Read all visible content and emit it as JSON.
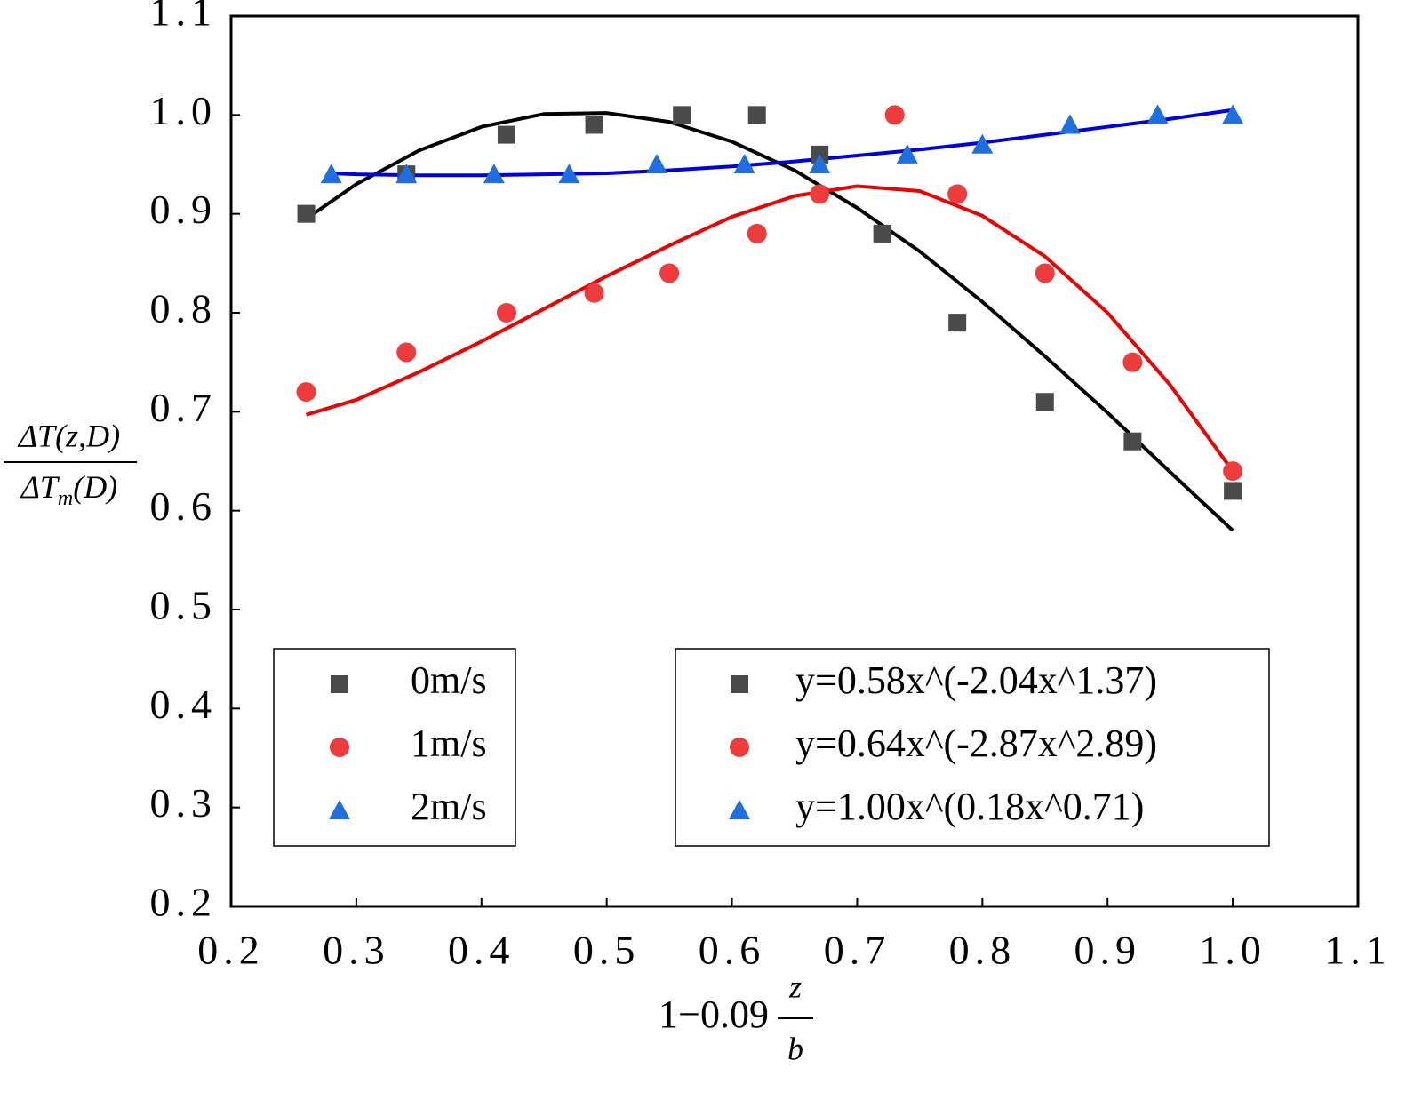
{
  "chart_data": {
    "type": "scatter",
    "xlabel": {
      "lead": "1−0.09",
      "numerator": "z",
      "denominator": "b"
    },
    "ylabel": {
      "numerator": "ΔT(z,D)",
      "denominator": "ΔT",
      "subscript": "m",
      "tail": "(D)"
    },
    "xlim": [
      0.2,
      1.1
    ],
    "ylim": [
      0.2,
      1.1
    ],
    "xticks": [
      0.2,
      0.3,
      0.4,
      0.5,
      0.6,
      0.7,
      0.8,
      0.9,
      {
        "value": 1,
        "label": "1.0"
      },
      1.1
    ],
    "yticks": [
      0.2,
      0.3,
      0.4,
      0.5,
      0.6,
      0.7,
      0.8,
      0.9,
      {
        "value": 1,
        "label": "1.0"
      },
      1.1
    ],
    "series": [
      {
        "name": "0m/s",
        "mode": "markers",
        "marker": "square",
        "color": "#4a4a4a",
        "x": [
          0.26,
          0.34,
          0.42,
          0.49,
          0.56,
          0.62,
          0.67,
          0.72,
          0.78,
          0.85,
          0.92,
          1.0
        ],
        "values": [
          0.9,
          0.94,
          0.98,
          0.99,
          1.0,
          1.0,
          0.96,
          0.88,
          0.79,
          0.71,
          0.67,
          0.62
        ]
      },
      {
        "name": "1m/s",
        "mode": "markers",
        "marker": "circle",
        "color": "#ee3b3b",
        "x": [
          0.26,
          0.34,
          0.42,
          0.49,
          0.55,
          0.62,
          0.67,
          0.73,
          0.78,
          0.85,
          0.92,
          1.0
        ],
        "values": [
          0.72,
          0.76,
          0.8,
          0.82,
          0.84,
          0.88,
          0.92,
          1.0,
          0.92,
          0.84,
          0.75,
          0.64
        ]
      },
      {
        "name": "2m/s",
        "mode": "markers",
        "marker": "triangle",
        "color": "#1f6fe0",
        "x": [
          0.28,
          0.34,
          0.41,
          0.47,
          0.54,
          0.61,
          0.67,
          0.74,
          0.8,
          0.87,
          0.94,
          1.0
        ],
        "values": [
          0.94,
          0.94,
          0.94,
          0.94,
          0.95,
          0.95,
          0.95,
          0.96,
          0.97,
          0.99,
          1.0,
          1.0
        ]
      },
      {
        "name": "y=0.58x^(-2.04x^1.37)",
        "mode": "line",
        "marker": "square",
        "marker_color": "#4a4a4a",
        "color": "#000000",
        "x": [
          0.26,
          0.3,
          0.35,
          0.4,
          0.45,
          0.5,
          0.55,
          0.6,
          0.65,
          0.7,
          0.75,
          0.8,
          0.85,
          0.9,
          0.95,
          1.0
        ],
        "values": [
          0.895,
          0.93,
          0.964,
          0.988,
          1.001,
          1.002,
          0.993,
          0.973,
          0.944,
          0.906,
          0.862,
          0.811,
          0.756,
          0.699,
          0.639,
          0.58
        ]
      },
      {
        "name": "y=0.64x^(-2.87x^2.89)",
        "mode": "line",
        "marker": "circle",
        "marker_color": "#ee3b3b",
        "color": "#ee0000",
        "x": [
          0.26,
          0.3,
          0.35,
          0.4,
          0.45,
          0.5,
          0.55,
          0.6,
          0.65,
          0.7,
          0.75,
          0.8,
          0.85,
          0.9,
          0.95,
          1.0
        ],
        "values": [
          0.697,
          0.712,
          0.74,
          0.771,
          0.804,
          0.837,
          0.868,
          0.897,
          0.918,
          0.928,
          0.923,
          0.898,
          0.857,
          0.8,
          0.727,
          0.64
        ]
      },
      {
        "name": "y=1.00x^(0.18x^0.71)",
        "mode": "line",
        "marker": "triangle",
        "marker_color": "#1f6fe0",
        "color": "#0000dd",
        "x": [
          0.28,
          0.3,
          0.35,
          0.4,
          0.45,
          0.5,
          0.55,
          0.6,
          0.65,
          0.7,
          0.75,
          0.8,
          0.85,
          0.9,
          0.95,
          1.0
        ],
        "values": [
          0.941,
          0.94,
          0.939,
          0.939,
          0.94,
          0.941,
          0.944,
          0.948,
          0.953,
          0.959,
          0.965,
          0.972,
          0.98,
          0.988,
          0.996,
          1.005
        ]
      }
    ]
  }
}
